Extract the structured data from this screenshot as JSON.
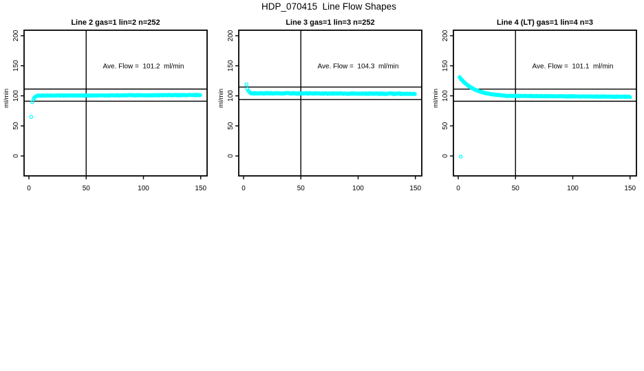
{
  "page_title": "HDP_070415  Line Flow Shapes",
  "colors": {
    "marker": "#00FFFF",
    "axis": "#000000",
    "background": "#FFFFFF"
  },
  "chart_data": [
    {
      "type": "scatter",
      "title": "Line 2 gas=1 lin=2 n=252",
      "annotation": "Ave. Flow =  101.2  ml/min",
      "ave_flow_ml_min": 101.2,
      "n": 252,
      "ylabel": "ml/min",
      "x_ticks": [
        0,
        50,
        100,
        150
      ],
      "y_ticks": [
        0,
        50,
        100,
        150,
        200
      ],
      "xlim": [
        0,
        150
      ],
      "ylim": [
        0,
        200
      ],
      "grid": false,
      "legend": "none",
      "vline_x": 50,
      "hlines": [
        111.3,
        91.1
      ],
      "marker_color": "#00FFFF",
      "segments": [
        {
          "kind": "points",
          "pts": [
            [
              2,
              65
            ],
            [
              3,
              89.5
            ],
            [
              4,
              94.5
            ],
            [
              4.6,
              96.5
            ],
            [
              5.2,
              98
            ],
            [
              6,
              99
            ],
            [
              7,
              100
            ]
          ]
        },
        {
          "kind": "band",
          "x0": 7.6,
          "x1": 150,
          "step": 0.57,
          "v0": 100.4,
          "v1": 101.3,
          "jitter": 0.5
        }
      ]
    },
    {
      "type": "scatter",
      "title": "Line 3 gas=1 lin=3 n=252",
      "annotation": "Ave. Flow =  104.3  ml/min",
      "ave_flow_ml_min": 104.3,
      "n": 252,
      "ylabel": "ml/min",
      "x_ticks": [
        0,
        50,
        100,
        150
      ],
      "y_ticks": [
        0,
        50,
        100,
        150,
        200
      ],
      "xlim": [
        0,
        150
      ],
      "ylim": [
        0,
        200
      ],
      "grid": false,
      "legend": "none",
      "vline_x": 50,
      "hlines": [
        114.7,
        93.9
      ],
      "marker_color": "#00FFFF",
      "segments": [
        {
          "kind": "points",
          "pts": [
            [
              2.5,
              119
            ],
            [
              3.2,
              111.5
            ],
            [
              4,
              108.5
            ],
            [
              5,
              106.5
            ],
            [
              5.8,
              105.3
            ]
          ]
        },
        {
          "kind": "band",
          "x0": 6.5,
          "x1": 150,
          "step": 0.57,
          "v0": 104.4,
          "v1": 103.4,
          "jitter": 0.7
        }
      ]
    },
    {
      "type": "scatter",
      "title": "Line 4 (LT) gas=1 lin=4 n=3",
      "annotation": "Ave. Flow =  101.1  ml/min",
      "ave_flow_ml_min": 101.1,
      "n": 3,
      "ylabel": "ml/min",
      "x_ticks": [
        0,
        50,
        100,
        150
      ],
      "y_ticks": [
        0,
        50,
        100,
        150,
        200
      ],
      "xlim": [
        0,
        150
      ],
      "ylim": [
        0,
        200
      ],
      "grid": false,
      "legend": "none",
      "vline_x": 50,
      "hlines": [
        111.2,
        91.0
      ],
      "marker_color": "#00FFFF",
      "segments": [
        {
          "kind": "decay",
          "x0": 1.2,
          "x1": 40,
          "step": 0.45,
          "base": 99,
          "amp": 35,
          "tau": 13,
          "jitter": 0.3
        },
        {
          "kind": "band",
          "x0": 40.5,
          "x1": 150,
          "step": 0.57,
          "v0": 100,
          "v1": 98.4,
          "jitter": 0.5
        },
        {
          "kind": "points",
          "pts": [
            [
              2.2,
              -1
            ]
          ]
        }
      ]
    }
  ]
}
